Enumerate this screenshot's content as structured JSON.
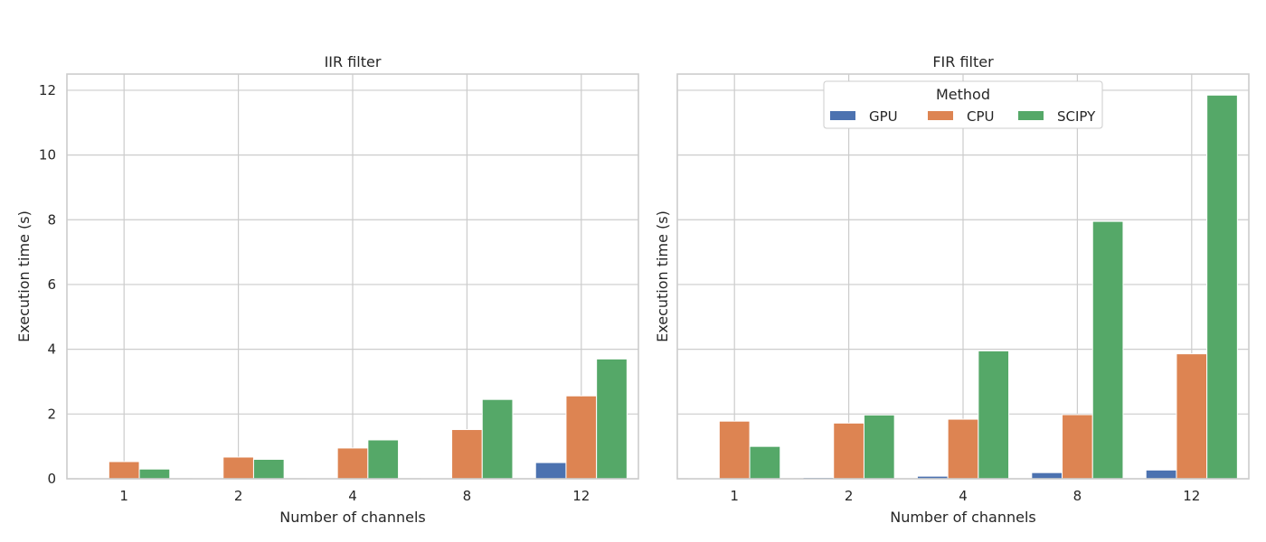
{
  "chart_data": [
    {
      "type": "bar",
      "title": "IIR filter",
      "xlabel": "Number of channels",
      "ylabel": "Execution time (s)",
      "categories": [
        "1",
        "2",
        "4",
        "8",
        "12"
      ],
      "ylim": [
        0,
        12.5
      ],
      "yticks": [
        "0",
        "2",
        "4",
        "6",
        "8",
        "10",
        "12"
      ],
      "grid": true,
      "series": [
        {
          "name": "GPU",
          "values": [
            0.01,
            0.01,
            0.01,
            0.01,
            0.5
          ]
        },
        {
          "name": "CPU",
          "values": [
            0.53,
            0.67,
            0.95,
            1.52,
            2.56
          ]
        },
        {
          "name": "SCIPY",
          "values": [
            0.3,
            0.6,
            1.2,
            2.45,
            3.7
          ]
        }
      ]
    },
    {
      "type": "bar",
      "title": "FIR filter",
      "xlabel": "Number of channels",
      "ylabel": "Execution time (s)",
      "categories": [
        "1",
        "2",
        "4",
        "8",
        "12"
      ],
      "ylim": [
        0,
        12.5
      ],
      "grid": true,
      "legend": {
        "title": "Method",
        "placement": "top-center"
      },
      "series": [
        {
          "name": "GPU",
          "values": [
            0.02,
            0.04,
            0.08,
            0.19,
            0.27
          ]
        },
        {
          "name": "CPU",
          "values": [
            1.78,
            1.72,
            1.84,
            1.98,
            3.86
          ]
        },
        {
          "name": "SCIPY",
          "values": [
            1.0,
            1.97,
            3.95,
            7.95,
            11.85
          ]
        }
      ]
    }
  ],
  "colors": {
    "GPU": "#4c72b0",
    "CPU": "#dd8452",
    "SCIPY": "#55a868",
    "grid": "#cccccc",
    "spine": "#cccccc"
  }
}
